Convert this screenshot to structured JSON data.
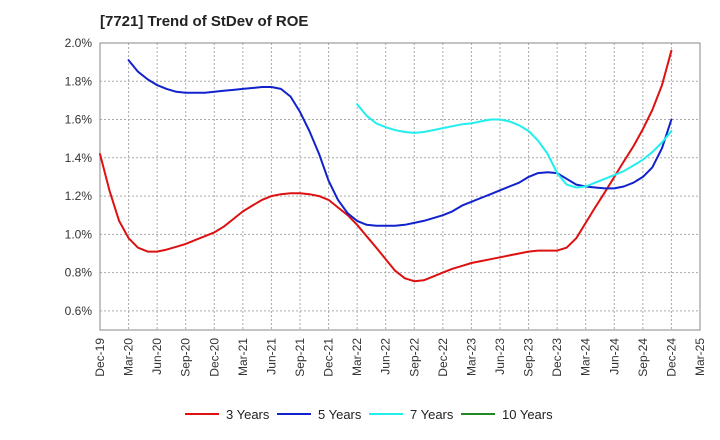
{
  "chart_data": {
    "type": "line",
    "title": "[7721]  Trend of StDev of ROE",
    "xlabel": "",
    "ylabel": "",
    "ylim": [
      0.5,
      2.0
    ],
    "yticks": [
      0.6,
      0.8,
      1.0,
      1.2,
      1.4,
      1.6,
      1.8,
      2.0
    ],
    "ytick_labels": [
      "0.6%",
      "0.8%",
      "1.0%",
      "1.2%",
      "1.4%",
      "1.6%",
      "1.8%",
      "2.0%"
    ],
    "categories": [
      "Dec-19",
      "Mar-20",
      "Jun-20",
      "Sep-20",
      "Dec-20",
      "Mar-21",
      "Jun-21",
      "Sep-21",
      "Dec-21",
      "Mar-22",
      "Jun-22",
      "Sep-22",
      "Dec-22",
      "Mar-23",
      "Jun-23",
      "Sep-23",
      "Dec-23",
      "Mar-24",
      "Jun-24",
      "Sep-24",
      "Dec-24",
      "Mar-25"
    ],
    "grid": true,
    "legend_position": "bottom",
    "series": [
      {
        "name": "3 Years",
        "color": "#dd1111",
        "points": [
          [
            0,
            1.42
          ],
          [
            0.33,
            1.23
          ],
          [
            0.67,
            1.07
          ],
          [
            1,
            0.98
          ],
          [
            1.33,
            0.93
          ],
          [
            1.67,
            0.91
          ],
          [
            2,
            0.91
          ],
          [
            2.33,
            0.92
          ],
          [
            2.67,
            0.935
          ],
          [
            3,
            0.95
          ],
          [
            3.33,
            0.97
          ],
          [
            3.67,
            0.99
          ],
          [
            4,
            1.01
          ],
          [
            4.33,
            1.04
          ],
          [
            4.67,
            1.08
          ],
          [
            5,
            1.12
          ],
          [
            5.33,
            1.15
          ],
          [
            5.67,
            1.18
          ],
          [
            6,
            1.2
          ],
          [
            6.33,
            1.21
          ],
          [
            6.67,
            1.215
          ],
          [
            7,
            1.215
          ],
          [
            7.33,
            1.21
          ],
          [
            7.67,
            1.2
          ],
          [
            8,
            1.18
          ],
          [
            8.33,
            1.14
          ],
          [
            8.67,
            1.1
          ],
          [
            9,
            1.05
          ],
          [
            9.33,
            0.99
          ],
          [
            9.67,
            0.93
          ],
          [
            10,
            0.87
          ],
          [
            10.33,
            0.81
          ],
          [
            10.67,
            0.77
          ],
          [
            11,
            0.755
          ],
          [
            11.33,
            0.76
          ],
          [
            11.67,
            0.78
          ],
          [
            12,
            0.8
          ],
          [
            12.33,
            0.82
          ],
          [
            12.67,
            0.835
          ],
          [
            13,
            0.85
          ],
          [
            13.33,
            0.86
          ],
          [
            13.67,
            0.87
          ],
          [
            14,
            0.88
          ],
          [
            14.33,
            0.89
          ],
          [
            14.67,
            0.9
          ],
          [
            15,
            0.91
          ],
          [
            15.33,
            0.915
          ],
          [
            15.67,
            0.915
          ],
          [
            16,
            0.915
          ],
          [
            16.33,
            0.93
          ],
          [
            16.67,
            0.98
          ],
          [
            17,
            1.06
          ],
          [
            17.33,
            1.14
          ],
          [
            17.67,
            1.22
          ],
          [
            18,
            1.3
          ],
          [
            18.33,
            1.38
          ],
          [
            18.67,
            1.46
          ],
          [
            19,
            1.55
          ],
          [
            19.33,
            1.65
          ],
          [
            19.67,
            1.78
          ],
          [
            20,
            1.96
          ]
        ]
      },
      {
        "name": "5 Years",
        "color": "#1122cc",
        "points": [
          [
            1,
            1.91
          ],
          [
            1.33,
            1.85
          ],
          [
            1.67,
            1.81
          ],
          [
            2,
            1.78
          ],
          [
            2.33,
            1.76
          ],
          [
            2.67,
            1.745
          ],
          [
            3,
            1.74
          ],
          [
            3.33,
            1.74
          ],
          [
            3.67,
            1.74
          ],
          [
            4,
            1.745
          ],
          [
            4.33,
            1.75
          ],
          [
            4.67,
            1.755
          ],
          [
            5,
            1.76
          ],
          [
            5.33,
            1.765
          ],
          [
            5.67,
            1.77
          ],
          [
            6,
            1.77
          ],
          [
            6.33,
            1.76
          ],
          [
            6.67,
            1.72
          ],
          [
            7,
            1.64
          ],
          [
            7.33,
            1.54
          ],
          [
            7.67,
            1.42
          ],
          [
            8,
            1.28
          ],
          [
            8.33,
            1.18
          ],
          [
            8.67,
            1.11
          ],
          [
            9,
            1.07
          ],
          [
            9.33,
            1.05
          ],
          [
            9.67,
            1.045
          ],
          [
            10,
            1.045
          ],
          [
            10.33,
            1.045
          ],
          [
            10.67,
            1.05
          ],
          [
            11,
            1.06
          ],
          [
            11.33,
            1.07
          ],
          [
            11.67,
            1.085
          ],
          [
            12,
            1.1
          ],
          [
            12.33,
            1.12
          ],
          [
            12.67,
            1.15
          ],
          [
            13,
            1.17
          ],
          [
            13.33,
            1.19
          ],
          [
            13.67,
            1.21
          ],
          [
            14,
            1.23
          ],
          [
            14.33,
            1.25
          ],
          [
            14.67,
            1.27
          ],
          [
            15,
            1.3
          ],
          [
            15.33,
            1.32
          ],
          [
            15.67,
            1.325
          ],
          [
            16,
            1.32
          ],
          [
            16.33,
            1.29
          ],
          [
            16.67,
            1.26
          ],
          [
            17,
            1.25
          ],
          [
            17.33,
            1.245
          ],
          [
            17.67,
            1.24
          ],
          [
            18,
            1.24
          ],
          [
            18.33,
            1.25
          ],
          [
            18.67,
            1.27
          ],
          [
            19,
            1.3
          ],
          [
            19.33,
            1.35
          ],
          [
            19.67,
            1.45
          ],
          [
            20,
            1.6
          ]
        ]
      },
      {
        "name": "7 Years",
        "color": "#22eeee",
        "points": [
          [
            9,
            1.68
          ],
          [
            9.33,
            1.62
          ],
          [
            9.67,
            1.58
          ],
          [
            10,
            1.56
          ],
          [
            10.33,
            1.545
          ],
          [
            10.67,
            1.535
          ],
          [
            11,
            1.53
          ],
          [
            11.33,
            1.535
          ],
          [
            11.67,
            1.545
          ],
          [
            12,
            1.555
          ],
          [
            12.33,
            1.565
          ],
          [
            12.67,
            1.575
          ],
          [
            13,
            1.58
          ],
          [
            13.33,
            1.59
          ],
          [
            13.67,
            1.6
          ],
          [
            14,
            1.6
          ],
          [
            14.33,
            1.59
          ],
          [
            14.67,
            1.57
          ],
          [
            15,
            1.54
          ],
          [
            15.33,
            1.49
          ],
          [
            15.67,
            1.42
          ],
          [
            16,
            1.32
          ],
          [
            16.33,
            1.26
          ],
          [
            16.67,
            1.245
          ],
          [
            17,
            1.25
          ],
          [
            17.33,
            1.27
          ],
          [
            17.67,
            1.29
          ],
          [
            18,
            1.31
          ],
          [
            18.33,
            1.33
          ],
          [
            18.67,
            1.36
          ],
          [
            19,
            1.39
          ],
          [
            19.33,
            1.43
          ],
          [
            19.67,
            1.48
          ],
          [
            20,
            1.54
          ]
        ]
      },
      {
        "name": "10 Years",
        "color": "#228822",
        "points": []
      }
    ]
  }
}
